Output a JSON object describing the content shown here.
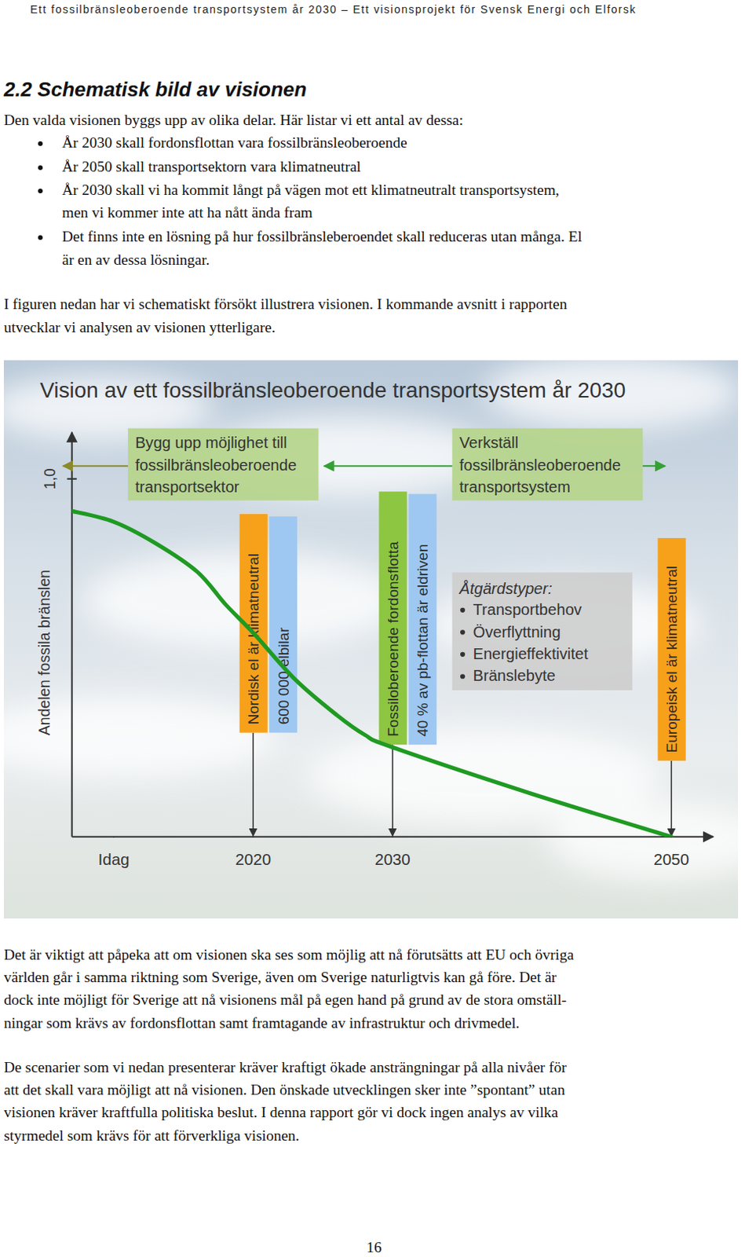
{
  "header": "Ett fossilbränsleoberoende transportsystem år 2030 – Ett visionsprojekt för Svensk Energi och Elforsk",
  "section_title": "2.2 Schematisk bild av visionen",
  "intro": "Den valda visionen byggs upp av olika delar. Här listar vi ett antal av dessa:",
  "bullets": [
    [
      "År 2030 skall fordonsflottan vara fossilbränsleoberoende"
    ],
    [
      "År 2050 skall transportsektorn vara klimatneutral"
    ],
    [
      "År 2030 skall vi ha kommit långt på vägen mot ett klimatneutralt transportsystem,",
      "men vi kommer inte att ha nått ända fram"
    ],
    [
      "Det finns inte en lösning på hur fossilbränsleberoendet skall reduceras utan många. El",
      "är en av dessa lösningar."
    ]
  ],
  "figure_intro": [
    "I figuren nedan har vi schematiskt försökt illustrera visionen. I kommande avsnitt i rapporten",
    "utvecklar vi analysen av visionen ytterligare."
  ],
  "chart_data": {
    "type": "line",
    "title": "Vision av ett fossilbränsleoberoende transportsystem år 2030",
    "y_label": "Andelen fossila bränslen",
    "x": [
      2007,
      2010,
      2013,
      2016,
      2018,
      2020,
      2023,
      2026,
      2028,
      2030,
      2040,
      2050
    ],
    "values": [
      0.91,
      0.88,
      0.82,
      0.74,
      0.65,
      0.57,
      0.44,
      0.34,
      0.285,
      0.25,
      0.12,
      0.0
    ],
    "color": "#1f9a22",
    "xlim": [
      2007,
      2053
    ],
    "ylim": [
      0,
      1.13
    ],
    "xticks": [
      {
        "value": 2010,
        "label": "Idag"
      },
      2020,
      2030,
      2050
    ],
    "yticks": [
      {
        "value": 1.0,
        "label": "1,0"
      }
    ],
    "phases": [
      {
        "label": [
          "Bygg upp möjlighet till",
          "fossilbränsleoberoende",
          "transportsektor"
        ]
      },
      {
        "label": [
          "Verkställ",
          "fossilbränsleoberoende",
          "transportsystem"
        ]
      }
    ],
    "milestones": [
      {
        "x": 2020,
        "labels": [
          "Nordisk el är klimatneutral",
          "600 000 elbilar"
        ],
        "colors": [
          "#f7a11a",
          "#9ec8f2"
        ]
      },
      {
        "x": 2030,
        "labels": [
          "Fossiloberoende fordonsflotta",
          "40 % av pb-flottan är eldriven"
        ],
        "colors": [
          "#8dc640",
          "#9ec8f2"
        ]
      },
      {
        "x": 2050,
        "labels": [
          "Europeisk el är klimatneutral"
        ],
        "colors": [
          "#f7a11a"
        ]
      }
    ],
    "measures": {
      "title": "Åtgärdstyper:",
      "items": [
        "Transportbehov",
        "Överflyttning",
        "Energieffektivitet",
        "Bränslebyte"
      ]
    }
  },
  "paragraphs": [
    [
      "Det är viktigt att påpeka att om visionen ska ses som möjlig att nå förutsätts att EU och övriga",
      "världen går i samma riktning som Sverige, även om Sverige naturligtvis kan gå före. Det är",
      "dock inte möjligt för Sverige att nå visionens mål på egen hand på grund av de stora omställ-",
      "ningar som krävs av fordonsflottan samt framtagande av infrastruktur och drivmedel."
    ],
    [
      "De scenarier som vi nedan presenterar kräver kraftigt ökade ansträngningar på alla nivåer för",
      "att det skall vara möjligt att nå visionen. Den önskade utvecklingen sker inte ”spontant” utan",
      "visionen kräver kraftfulla politiska beslut. I denna rapport gör vi dock ingen analys av vilka",
      "styrmedel som krävs för att förverkliga visionen."
    ]
  ],
  "page_number": 16
}
